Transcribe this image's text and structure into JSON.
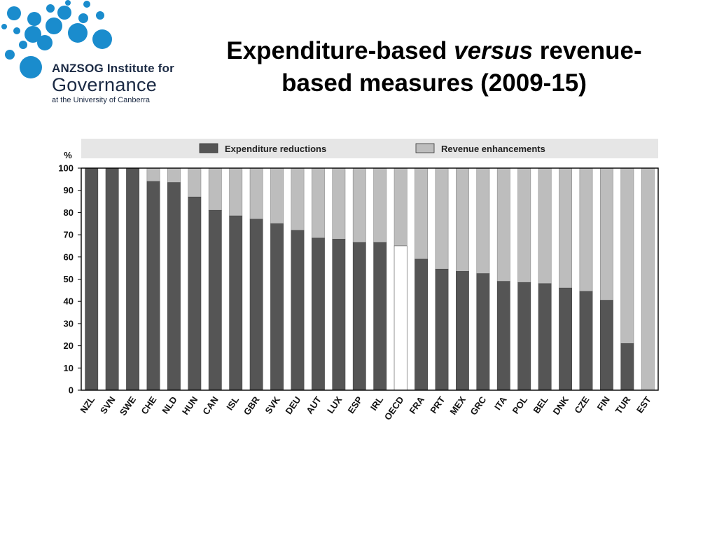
{
  "logo": {
    "line1": "ANZSOG Institute for",
    "line2": "Governance",
    "line3": "at the University of Canberra"
  },
  "title": {
    "part1": "Expenditure-based ",
    "italic": "versus",
    "part2": " revenue-",
    "line2": "based measures (2009-15)"
  },
  "colors": {
    "expenditure": "#555555",
    "revenue": "#bdbdbd",
    "oecd_expenditure": "#ffffff",
    "legend_band": "#e6e6e6"
  },
  "chart_data": {
    "type": "bar",
    "stacked": true,
    "ylabel": "%",
    "ylim": [
      0,
      100
    ],
    "yticks": [
      0,
      10,
      20,
      30,
      40,
      50,
      60,
      70,
      80,
      90,
      100
    ],
    "legend_position": "top",
    "categories": [
      "NZL",
      "SVN",
      "SWE",
      "CHE",
      "NLD",
      "HUN",
      "CAN",
      "ISL",
      "GBR",
      "SVK",
      "DEU",
      "AUT",
      "LUX",
      "ESP",
      "IRL",
      "OECD",
      "FRA",
      "PRT",
      "MEX",
      "GRC",
      "ITA",
      "POL",
      "BEL",
      "DNK",
      "CZE",
      "FIN",
      "TUR",
      "EST"
    ],
    "highlight_category": "OECD",
    "series": [
      {
        "name": "Expenditure reductions",
        "values": [
          100,
          100,
          100,
          94,
          93.5,
          87,
          81,
          78.5,
          77,
          75,
          72,
          68.5,
          68,
          66.5,
          66.5,
          65,
          59,
          54.5,
          53.5,
          52.5,
          49,
          48.5,
          48,
          46,
          44.5,
          40.5,
          21,
          0
        ]
      },
      {
        "name": "Revenue enhancements",
        "values": [
          0,
          0,
          0,
          6,
          6.5,
          13,
          19,
          21.5,
          23,
          25,
          28,
          31.5,
          32,
          33.5,
          33.5,
          35,
          41,
          45.5,
          46.5,
          47.5,
          51,
          51.5,
          52,
          54,
          55.5,
          59.5,
          79,
          100
        ]
      }
    ]
  }
}
